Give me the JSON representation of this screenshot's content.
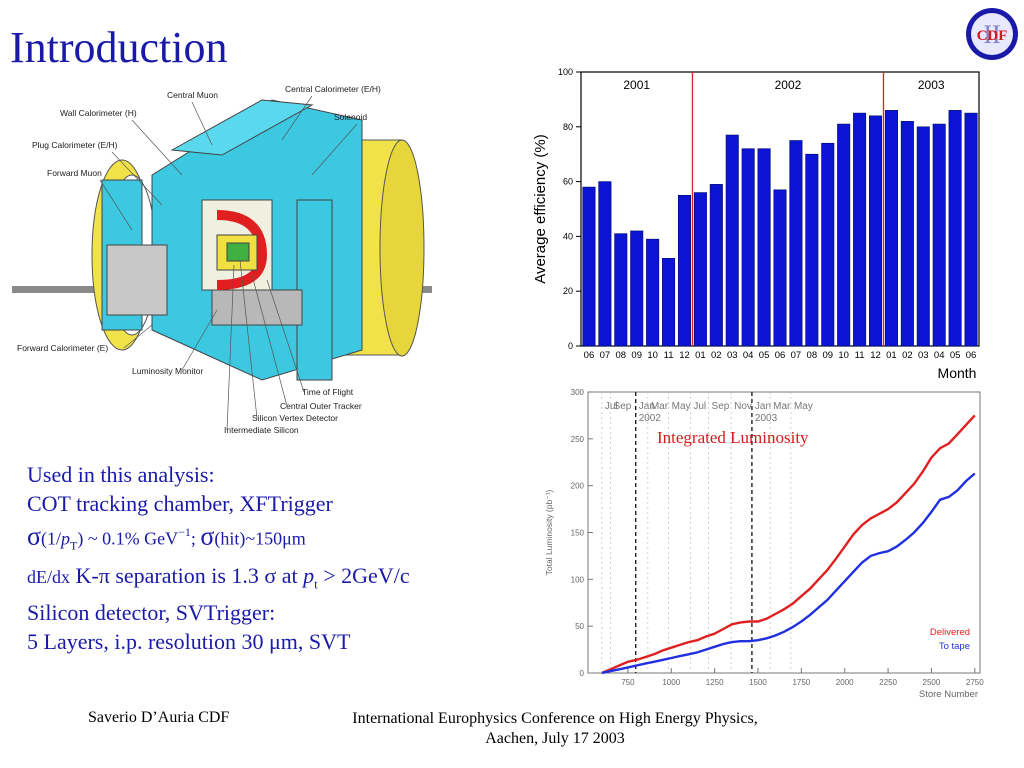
{
  "slide": {
    "title": "Introduction",
    "logo_text": "CDF",
    "logo_roman": "II"
  },
  "detector": {
    "labels": [
      "Central Muon",
      "Central Calorimeter (E/H)",
      "Wall Calorimeter (H)",
      "Solenoid",
      "Plug Calorimeter (E/H)",
      "Forward Muon",
      "Forward Calorimeter (E)",
      "Luminosity Monitor",
      "Time of Flight",
      "Central Outer Tracker",
      "Silicon Vertex Detector",
      "Intermediate Silicon"
    ]
  },
  "analysis": {
    "line1": "Used in this analysis:",
    "line2": "COT tracking chamber, XFTrigger",
    "line3_sigma1": "σ",
    "line3_a": "(1/",
    "line3_p": "p",
    "line3_T": "T",
    "line3_b": ") ~ 0.1% GeV",
    "line3_exp": "−1",
    "line3_c": "; ",
    "line3_sigma2": "σ",
    "line3_d": "(hit)~150μm",
    "line4_a": "dE/dx",
    "line4_b": " K-π separation is 1.3 σ at ",
    "line4_p": "p",
    "line4_t": "t",
    "line4_c": " > 2GeV/c",
    "line5": "Silicon detector, SVTrigger:",
    "line6": "5 Layers, i.p. resolution 30 μm, SVT"
  },
  "footer": {
    "author": "Saverio D’Auria CDF",
    "conference_line1": "International Europhysics Conference on High Energy Physics,",
    "conference_line2": "Aachen, July 17 2003"
  },
  "colors": {
    "title_blue": "#1a1aa8",
    "bar_blue": "#0a14d2",
    "delivered_red": "#e02020",
    "totape_blue": "#2030e0"
  },
  "chart_data": [
    {
      "type": "bar",
      "ylabel": "Average efficiency (%)",
      "xlabel": "Month",
      "ylim": [
        0,
        100
      ],
      "yticks": [
        0,
        20,
        40,
        60,
        80,
        100
      ],
      "year_labels": [
        "2001",
        "2002",
        "2003"
      ],
      "year_dividers_after_index": [
        6,
        18
      ],
      "categories": [
        "06",
        "07",
        "08",
        "09",
        "10",
        "11",
        "12",
        "01",
        "02",
        "03",
        "04",
        "05",
        "06",
        "07",
        "08",
        "09",
        "10",
        "11",
        "12",
        "01",
        "02",
        "03",
        "04",
        "05",
        "06"
      ],
      "values": [
        58,
        60,
        41,
        42,
        39,
        32,
        55,
        56,
        59,
        77,
        72,
        72,
        57,
        75,
        70,
        74,
        81,
        85,
        84,
        86,
        82,
        80,
        81,
        86,
        85
      ]
    },
    {
      "type": "line",
      "title": "Integrated Luminosity",
      "ylabel": "Total Luminosity (pb⁻¹)",
      "xlabel": "Store Number",
      "xlim": [
        520,
        2780
      ],
      "ylim": [
        0,
        300
      ],
      "xticks": [
        750,
        1000,
        1250,
        1500,
        1750,
        2000,
        2250,
        2500,
        2750
      ],
      "yticks": [
        0,
        50,
        100,
        150,
        200,
        250,
        300
      ],
      "months": [
        {
          "label": "Jul",
          "x": 600
        },
        {
          "label": "Sep",
          "x": 650
        },
        {
          "label": "Jan",
          "sub": "2002",
          "x": 795
        },
        {
          "label": "Mar",
          "x": 865
        },
        {
          "label": "May",
          "x": 985
        },
        {
          "label": "Jul",
          "x": 1110
        },
        {
          "label": "Sep",
          "x": 1215
        },
        {
          "label": "Nov",
          "x": 1345
        },
        {
          "label": "Jan",
          "sub": "2003",
          "x": 1465
        },
        {
          "label": "Mar",
          "x": 1570
        },
        {
          "label": "May",
          "x": 1690
        }
      ],
      "series": [
        {
          "name": "Delivered",
          "color": "#e02020",
          "x": [
            600,
            650,
            700,
            750,
            800,
            850,
            900,
            950,
            1000,
            1050,
            1100,
            1150,
            1200,
            1250,
            1300,
            1350,
            1400,
            1450,
            1500,
            1550,
            1600,
            1650,
            1700,
            1750,
            1800,
            1850,
            1900,
            1950,
            2000,
            2050,
            2100,
            2150,
            2200,
            2250,
            2300,
            2350,
            2400,
            2450,
            2500,
            2550,
            2600,
            2650,
            2700,
            2750
          ],
          "values": [
            0,
            4,
            8,
            12,
            14,
            17,
            20,
            24,
            27,
            30,
            33,
            35,
            39,
            42,
            47,
            52,
            54,
            55,
            55,
            58,
            63,
            68,
            74,
            82,
            90,
            100,
            110,
            122,
            135,
            148,
            158,
            165,
            170,
            175,
            182,
            192,
            202,
            215,
            230,
            240,
            245,
            255,
            265,
            275
          ]
        },
        {
          "name": "To tape",
          "color": "#2030e0",
          "x": [
            600,
            650,
            700,
            750,
            800,
            850,
            900,
            950,
            1000,
            1050,
            1100,
            1150,
            1200,
            1250,
            1300,
            1350,
            1400,
            1450,
            1500,
            1550,
            1600,
            1650,
            1700,
            1750,
            1800,
            1850,
            1900,
            1950,
            2000,
            2050,
            2100,
            2150,
            2200,
            2250,
            2300,
            2350,
            2400,
            2450,
            2500,
            2550,
            2600,
            2650,
            2700,
            2750
          ],
          "values": [
            0,
            2,
            4,
            6,
            8,
            10,
            12,
            14,
            16,
            18,
            20,
            22,
            25,
            28,
            31,
            33,
            34,
            34,
            35,
            37,
            40,
            44,
            49,
            55,
            62,
            70,
            78,
            88,
            98,
            108,
            118,
            125,
            128,
            130,
            135,
            142,
            150,
            160,
            172,
            185,
            188,
            195,
            205,
            213
          ]
        }
      ]
    }
  ]
}
